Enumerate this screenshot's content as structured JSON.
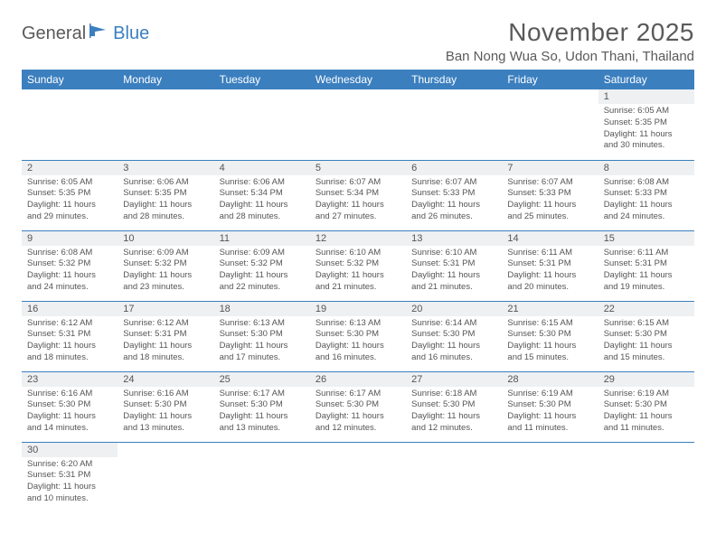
{
  "brand": {
    "name1": "General",
    "name2": "Blue"
  },
  "colors": {
    "accent": "#3b7fbf",
    "text": "#5a5a5a",
    "cell_header": "#eef0f2"
  },
  "title": "November 2025",
  "location": "Ban Nong Wua So, Udon Thani, Thailand",
  "dow": [
    "Sunday",
    "Monday",
    "Tuesday",
    "Wednesday",
    "Thursday",
    "Friday",
    "Saturday"
  ],
  "weeks": [
    [
      null,
      null,
      null,
      null,
      null,
      null,
      {
        "n": "1",
        "sunrise": "Sunrise: 6:05 AM",
        "sunset": "Sunset: 5:35 PM",
        "daylight": "Daylight: 11 hours and 30 minutes."
      }
    ],
    [
      {
        "n": "2",
        "sunrise": "Sunrise: 6:05 AM",
        "sunset": "Sunset: 5:35 PM",
        "daylight": "Daylight: 11 hours and 29 minutes."
      },
      {
        "n": "3",
        "sunrise": "Sunrise: 6:06 AM",
        "sunset": "Sunset: 5:35 PM",
        "daylight": "Daylight: 11 hours and 28 minutes."
      },
      {
        "n": "4",
        "sunrise": "Sunrise: 6:06 AM",
        "sunset": "Sunset: 5:34 PM",
        "daylight": "Daylight: 11 hours and 28 minutes."
      },
      {
        "n": "5",
        "sunrise": "Sunrise: 6:07 AM",
        "sunset": "Sunset: 5:34 PM",
        "daylight": "Daylight: 11 hours and 27 minutes."
      },
      {
        "n": "6",
        "sunrise": "Sunrise: 6:07 AM",
        "sunset": "Sunset: 5:33 PM",
        "daylight": "Daylight: 11 hours and 26 minutes."
      },
      {
        "n": "7",
        "sunrise": "Sunrise: 6:07 AM",
        "sunset": "Sunset: 5:33 PM",
        "daylight": "Daylight: 11 hours and 25 minutes."
      },
      {
        "n": "8",
        "sunrise": "Sunrise: 6:08 AM",
        "sunset": "Sunset: 5:33 PM",
        "daylight": "Daylight: 11 hours and 24 minutes."
      }
    ],
    [
      {
        "n": "9",
        "sunrise": "Sunrise: 6:08 AM",
        "sunset": "Sunset: 5:32 PM",
        "daylight": "Daylight: 11 hours and 24 minutes."
      },
      {
        "n": "10",
        "sunrise": "Sunrise: 6:09 AM",
        "sunset": "Sunset: 5:32 PM",
        "daylight": "Daylight: 11 hours and 23 minutes."
      },
      {
        "n": "11",
        "sunrise": "Sunrise: 6:09 AM",
        "sunset": "Sunset: 5:32 PM",
        "daylight": "Daylight: 11 hours and 22 minutes."
      },
      {
        "n": "12",
        "sunrise": "Sunrise: 6:10 AM",
        "sunset": "Sunset: 5:32 PM",
        "daylight": "Daylight: 11 hours and 21 minutes."
      },
      {
        "n": "13",
        "sunrise": "Sunrise: 6:10 AM",
        "sunset": "Sunset: 5:31 PM",
        "daylight": "Daylight: 11 hours and 21 minutes."
      },
      {
        "n": "14",
        "sunrise": "Sunrise: 6:11 AM",
        "sunset": "Sunset: 5:31 PM",
        "daylight": "Daylight: 11 hours and 20 minutes."
      },
      {
        "n": "15",
        "sunrise": "Sunrise: 6:11 AM",
        "sunset": "Sunset: 5:31 PM",
        "daylight": "Daylight: 11 hours and 19 minutes."
      }
    ],
    [
      {
        "n": "16",
        "sunrise": "Sunrise: 6:12 AM",
        "sunset": "Sunset: 5:31 PM",
        "daylight": "Daylight: 11 hours and 18 minutes."
      },
      {
        "n": "17",
        "sunrise": "Sunrise: 6:12 AM",
        "sunset": "Sunset: 5:31 PM",
        "daylight": "Daylight: 11 hours and 18 minutes."
      },
      {
        "n": "18",
        "sunrise": "Sunrise: 6:13 AM",
        "sunset": "Sunset: 5:30 PM",
        "daylight": "Daylight: 11 hours and 17 minutes."
      },
      {
        "n": "19",
        "sunrise": "Sunrise: 6:13 AM",
        "sunset": "Sunset: 5:30 PM",
        "daylight": "Daylight: 11 hours and 16 minutes."
      },
      {
        "n": "20",
        "sunrise": "Sunrise: 6:14 AM",
        "sunset": "Sunset: 5:30 PM",
        "daylight": "Daylight: 11 hours and 16 minutes."
      },
      {
        "n": "21",
        "sunrise": "Sunrise: 6:15 AM",
        "sunset": "Sunset: 5:30 PM",
        "daylight": "Daylight: 11 hours and 15 minutes."
      },
      {
        "n": "22",
        "sunrise": "Sunrise: 6:15 AM",
        "sunset": "Sunset: 5:30 PM",
        "daylight": "Daylight: 11 hours and 15 minutes."
      }
    ],
    [
      {
        "n": "23",
        "sunrise": "Sunrise: 6:16 AM",
        "sunset": "Sunset: 5:30 PM",
        "daylight": "Daylight: 11 hours and 14 minutes."
      },
      {
        "n": "24",
        "sunrise": "Sunrise: 6:16 AM",
        "sunset": "Sunset: 5:30 PM",
        "daylight": "Daylight: 11 hours and 13 minutes."
      },
      {
        "n": "25",
        "sunrise": "Sunrise: 6:17 AM",
        "sunset": "Sunset: 5:30 PM",
        "daylight": "Daylight: 11 hours and 13 minutes."
      },
      {
        "n": "26",
        "sunrise": "Sunrise: 6:17 AM",
        "sunset": "Sunset: 5:30 PM",
        "daylight": "Daylight: 11 hours and 12 minutes."
      },
      {
        "n": "27",
        "sunrise": "Sunrise: 6:18 AM",
        "sunset": "Sunset: 5:30 PM",
        "daylight": "Daylight: 11 hours and 12 minutes."
      },
      {
        "n": "28",
        "sunrise": "Sunrise: 6:19 AM",
        "sunset": "Sunset: 5:30 PM",
        "daylight": "Daylight: 11 hours and 11 minutes."
      },
      {
        "n": "29",
        "sunrise": "Sunrise: 6:19 AM",
        "sunset": "Sunset: 5:30 PM",
        "daylight": "Daylight: 11 hours and 11 minutes."
      }
    ],
    [
      {
        "n": "30",
        "sunrise": "Sunrise: 6:20 AM",
        "sunset": "Sunset: 5:31 PM",
        "daylight": "Daylight: 11 hours and 10 minutes."
      },
      null,
      null,
      null,
      null,
      null,
      null
    ]
  ]
}
